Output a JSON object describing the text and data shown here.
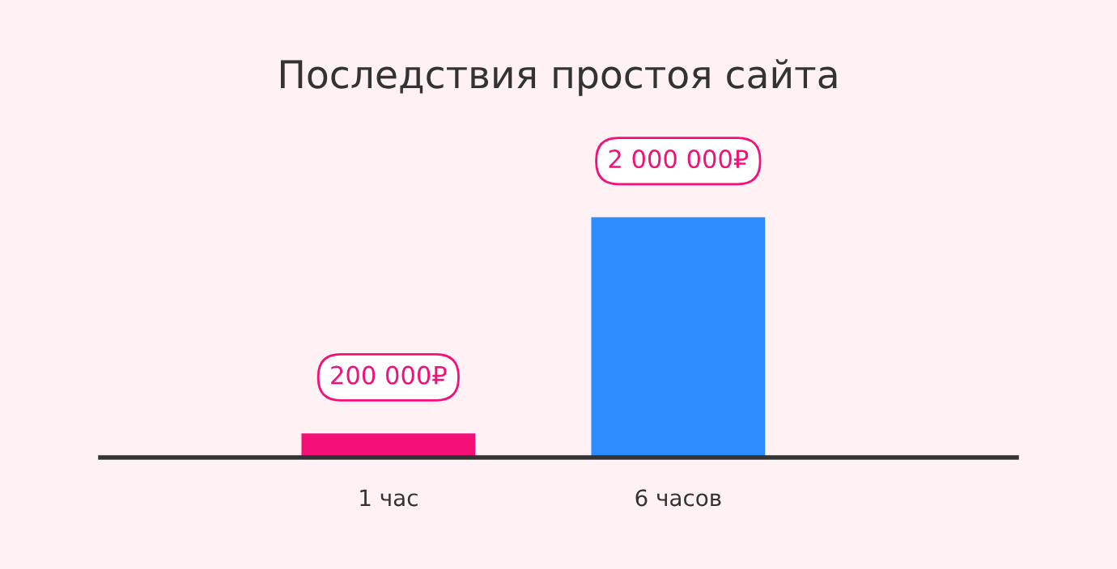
{
  "chart_data": {
    "type": "bar",
    "title": "Последствия простоя сайта",
    "categories": [
      "1 час",
      "6 часов"
    ],
    "values": [
      200000,
      2000000
    ],
    "colors": [
      "#f50f78",
      "#2f8cff"
    ],
    "value_labels": [
      "200 000₽",
      "2 000 000₽"
    ],
    "grid": false,
    "legend": false
  }
}
